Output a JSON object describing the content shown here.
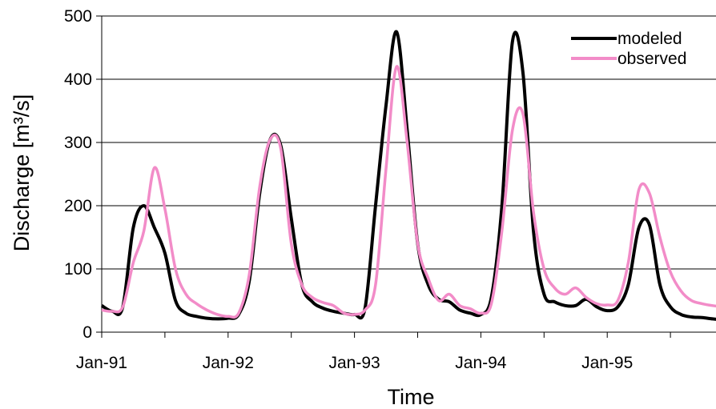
{
  "chart_data": {
    "type": "line",
    "title": "",
    "xlabel": "Time",
    "ylabel": "Discharge [m³/s]",
    "ylim": [
      0,
      500
    ],
    "yticks": [
      0,
      100,
      200,
      300,
      400,
      500
    ],
    "xlim": [
      "1991-01",
      "1995-12"
    ],
    "xticks": [
      {
        "date": "1991-01",
        "label": "Jan-91"
      },
      {
        "date": "1992-01",
        "label": "Jan-92"
      },
      {
        "date": "1993-01",
        "label": "Jan-93"
      },
      {
        "date": "1994-01",
        "label": "Jan-94"
      },
      {
        "date": "1995-01",
        "label": "Jan-95"
      }
    ],
    "grid": "horizontal",
    "legend_position": "top-right",
    "series": [
      {
        "name": "modeled",
        "color": "#000000",
        "points": [
          [
            "1991-01",
            42
          ],
          [
            "1991-02",
            33
          ],
          [
            "1991-03",
            40
          ],
          [
            "1991-04",
            165
          ],
          [
            "1991-05",
            200
          ],
          [
            "1991-06",
            165
          ],
          [
            "1991-07",
            125
          ],
          [
            "1991-08",
            50
          ],
          [
            "1991-09",
            30
          ],
          [
            "1991-10",
            25
          ],
          [
            "1991-11",
            22
          ],
          [
            "1991-12",
            21
          ],
          [
            "1992-01",
            22
          ],
          [
            "1992-02",
            28
          ],
          [
            "1992-03",
            80
          ],
          [
            "1992-04",
            220
          ],
          [
            "1992-05",
            305
          ],
          [
            "1992-06",
            295
          ],
          [
            "1992-07",
            180
          ],
          [
            "1992-08",
            75
          ],
          [
            "1992-09",
            48
          ],
          [
            "1992-10",
            38
          ],
          [
            "1992-11",
            33
          ],
          [
            "1992-12",
            30
          ],
          [
            "1993-01",
            28
          ],
          [
            "1993-02",
            38
          ],
          [
            "1993-03",
            200
          ],
          [
            "1993-04",
            360
          ],
          [
            "1993-05",
            475
          ],
          [
            "1993-06",
            320
          ],
          [
            "1993-07",
            140
          ],
          [
            "1993-08",
            75
          ],
          [
            "1993-09",
            52
          ],
          [
            "1993-10",
            48
          ],
          [
            "1993-11",
            35
          ],
          [
            "1993-12",
            30
          ],
          [
            "1994-01",
            28
          ],
          [
            "1994-02",
            55
          ],
          [
            "1994-03",
            200
          ],
          [
            "1994-04",
            460
          ],
          [
            "1994-05",
            410
          ],
          [
            "1994-06",
            160
          ],
          [
            "1994-07",
            60
          ],
          [
            "1994-08",
            48
          ],
          [
            "1994-09",
            42
          ],
          [
            "1994-10",
            42
          ],
          [
            "1994-11",
            52
          ],
          [
            "1994-12",
            40
          ],
          [
            "1995-01",
            34
          ],
          [
            "1995-02",
            40
          ],
          [
            "1995-03",
            75
          ],
          [
            "1995-04",
            165
          ],
          [
            "1995-05",
            170
          ],
          [
            "1995-06",
            75
          ],
          [
            "1995-07",
            40
          ],
          [
            "1995-08",
            28
          ],
          [
            "1995-09",
            24
          ],
          [
            "1995-10",
            23
          ],
          [
            "1995-11",
            21
          ],
          [
            "1995-12",
            19
          ]
        ]
      },
      {
        "name": "observed",
        "color": "#f28cc8",
        "points": [
          [
            "1991-01",
            35
          ],
          [
            "1991-02",
            33
          ],
          [
            "1991-03",
            40
          ],
          [
            "1991-04",
            110
          ],
          [
            "1991-05",
            160
          ],
          [
            "1991-06",
            260
          ],
          [
            "1991-07",
            195
          ],
          [
            "1991-08",
            100
          ],
          [
            "1991-09",
            60
          ],
          [
            "1991-10",
            45
          ],
          [
            "1991-11",
            35
          ],
          [
            "1991-12",
            28
          ],
          [
            "1992-01",
            25
          ],
          [
            "1992-02",
            30
          ],
          [
            "1992-03",
            90
          ],
          [
            "1992-04",
            230
          ],
          [
            "1992-05",
            305
          ],
          [
            "1992-06",
            290
          ],
          [
            "1992-07",
            140
          ],
          [
            "1992-08",
            75
          ],
          [
            "1992-09",
            55
          ],
          [
            "1992-10",
            47
          ],
          [
            "1992-11",
            42
          ],
          [
            "1992-12",
            30
          ],
          [
            "1993-01",
            28
          ],
          [
            "1993-02",
            35
          ],
          [
            "1993-03",
            75
          ],
          [
            "1993-04",
            260
          ],
          [
            "1993-05",
            420
          ],
          [
            "1993-06",
            300
          ],
          [
            "1993-07",
            140
          ],
          [
            "1993-08",
            85
          ],
          [
            "1993-09",
            50
          ],
          [
            "1993-10",
            60
          ],
          [
            "1993-11",
            42
          ],
          [
            "1993-12",
            37
          ],
          [
            "1994-01",
            30
          ],
          [
            "1994-02",
            45
          ],
          [
            "1994-03",
            160
          ],
          [
            "1994-04",
            320
          ],
          [
            "1994-05",
            345
          ],
          [
            "1994-06",
            190
          ],
          [
            "1994-07",
            100
          ],
          [
            "1994-08",
            70
          ],
          [
            "1994-09",
            60
          ],
          [
            "1994-10",
            70
          ],
          [
            "1994-11",
            55
          ],
          [
            "1994-12",
            45
          ],
          [
            "1995-01",
            43
          ],
          [
            "1995-02",
            50
          ],
          [
            "1995-03",
            110
          ],
          [
            "1995-04",
            225
          ],
          [
            "1995-05",
            220
          ],
          [
            "1995-06",
            150
          ],
          [
            "1995-07",
            95
          ],
          [
            "1995-08",
            65
          ],
          [
            "1995-09",
            50
          ],
          [
            "1995-10",
            45
          ],
          [
            "1995-11",
            42
          ],
          [
            "1995-12",
            40
          ]
        ]
      }
    ]
  }
}
